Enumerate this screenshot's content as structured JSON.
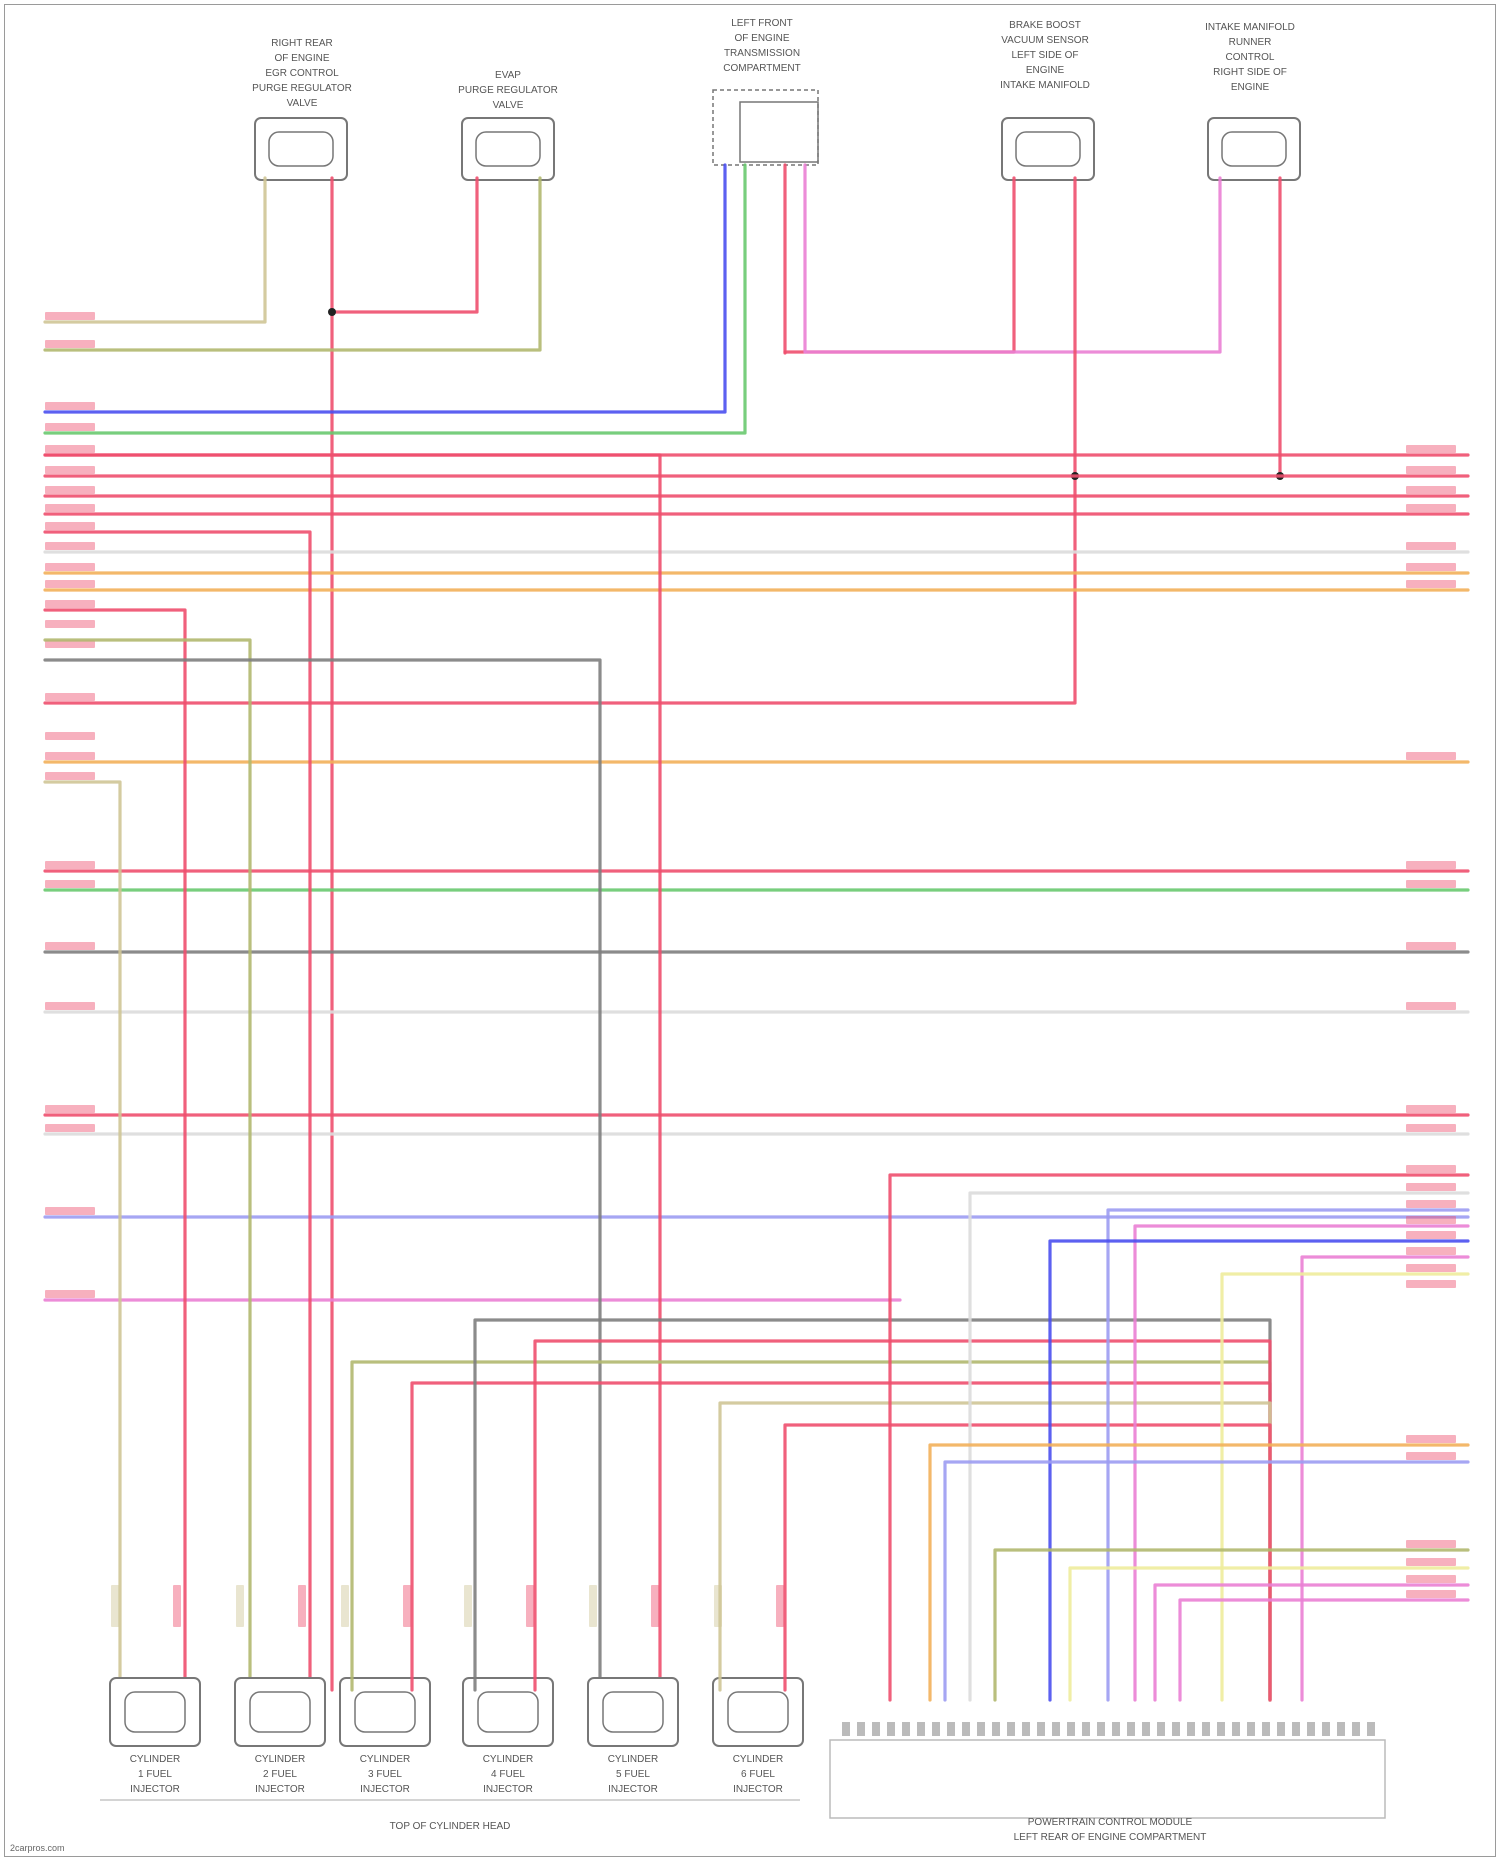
{
  "top_components": [
    {
      "label": "RIGHT REAR\nOF ENGINE\nEGR CONTROL\nPURGE REGULATOR\nVALVE"
    },
    {
      "label": "EVAP\nPURGE REGULATOR\nVALVE"
    },
    {
      "label": "LEFT FRONT\nOF ENGINE\nTRANSMISSION\nCOMPARTMENT"
    },
    {
      "label": "BRAKE BOOST\nVACUUM SENSOR\nLEFT SIDE OF\nENGINE\nINTAKE MANIFOLD"
    },
    {
      "label": "INTAKE MANIFOLD\nRUNNER\nCONTROL\nRIGHT SIDE OF\nENGINE"
    }
  ],
  "bottom_components": [
    {
      "label": "CYLINDER\n1 FUEL\nINJECTOR"
    },
    {
      "label": "CYLINDER\n2 FUEL\nINJECTOR"
    },
    {
      "label": "CYLINDER\n3 FUEL\nINJECTOR"
    },
    {
      "label": "CYLINDER\n4 FUEL\nINJECTOR"
    },
    {
      "label": "CYLINDER\n5 FUEL\nINJECTOR"
    },
    {
      "label": "CYLINDER\n6 FUEL\nINJECTOR"
    }
  ],
  "bottom_group_label": "TOP OF CYLINDER HEAD",
  "module_label": "POWERTRAIN CONTROL MODULE\nLEFT REAR OF ENGINE COMPARTMENT",
  "watermark": "2carpros.com",
  "wire_colors": {
    "red": "#ee4f6e",
    "pink": "#ea7fd4",
    "blue": "#4a4ff0",
    "lightblue": "#9c9cf2",
    "green": "#69c96f",
    "olive": "#b1b86f",
    "lightgreen": "#c8dd8c",
    "tan": "#cfc596",
    "orange": "#f2b05a",
    "yellow": "#eeec9c",
    "gray": "#7e7e7e",
    "white": "#dcdcdc",
    "black": "#333333",
    "connector": "#777777"
  }
}
